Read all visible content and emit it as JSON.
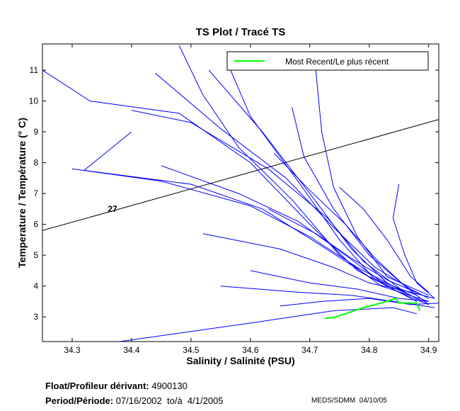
{
  "chart_data": {
    "type": "line",
    "title": "TS Plot / Tracé TS",
    "xlabel": "Salinity / Salinité (PSU)",
    "ylabel": "Temperature / Température (° C)",
    "xlim": [
      34.25,
      34.917
    ],
    "ylim": [
      2.2,
      11.85
    ],
    "xticks": [
      "34.3",
      "34.4",
      "34.5",
      "34.6",
      "34.7",
      "34.8",
      "34.9"
    ],
    "yticks": [
      "3",
      "4",
      "5",
      "6",
      "7",
      "8",
      "9",
      "10",
      "11"
    ],
    "legend": {
      "label": "Most Recent/Le plus récent",
      "placement": "top-right"
    },
    "colors": {
      "profiles": "#0000ff",
      "recent": "#00ff00",
      "density": "#000000"
    },
    "density_contour": {
      "label": "27",
      "points": [
        [
          34.25,
          5.8
        ],
        [
          34.917,
          9.4
        ]
      ],
      "label_at": [
        34.36,
        6.4
      ]
    },
    "profiles": [
      [
        [
          34.25,
          11.0
        ],
        [
          34.33,
          10.0
        ],
        [
          34.48,
          9.6
        ],
        [
          34.6,
          8.0
        ],
        [
          34.7,
          6.0
        ],
        [
          34.78,
          4.5
        ],
        [
          34.85,
          3.8
        ],
        [
          34.9,
          3.4
        ]
      ],
      [
        [
          34.4,
          9.0
        ],
        [
          34.32,
          7.75
        ],
        [
          34.5,
          7.3
        ],
        [
          34.62,
          6.5
        ],
        [
          34.72,
          5.3
        ],
        [
          34.8,
          4.3
        ],
        [
          34.88,
          3.7
        ]
      ],
      [
        [
          34.48,
          11.8
        ],
        [
          34.52,
          10.2
        ],
        [
          34.58,
          8.5
        ],
        [
          34.67,
          6.8
        ],
        [
          34.75,
          5.0
        ],
        [
          34.82,
          4.0
        ],
        [
          34.9,
          3.5
        ]
      ],
      [
        [
          34.56,
          11.3
        ],
        [
          34.6,
          9.5
        ],
        [
          34.68,
          7.4
        ],
        [
          34.75,
          5.5
        ],
        [
          34.81,
          4.2
        ],
        [
          34.87,
          3.7
        ]
      ],
      [
        [
          34.3,
          7.8
        ],
        [
          34.45,
          7.4
        ],
        [
          34.6,
          6.6
        ],
        [
          34.7,
          5.6
        ],
        [
          34.78,
          4.6
        ],
        [
          34.85,
          3.9
        ],
        [
          34.91,
          3.6
        ]
      ],
      [
        [
          34.53,
          11.0
        ],
        [
          34.62,
          9.0
        ],
        [
          34.7,
          7.0
        ],
        [
          34.77,
          5.2
        ],
        [
          34.83,
          4.1
        ],
        [
          34.89,
          3.5
        ]
      ],
      [
        [
          34.4,
          9.7
        ],
        [
          34.5,
          9.3
        ],
        [
          34.63,
          7.8
        ],
        [
          34.73,
          6.2
        ],
        [
          34.79,
          4.8
        ],
        [
          34.86,
          3.8
        ]
      ],
      [
        [
          34.71,
          11.0
        ],
        [
          34.72,
          9.0
        ],
        [
          34.74,
          7.2
        ],
        [
          34.78,
          5.6
        ],
        [
          34.83,
          4.3
        ],
        [
          34.9,
          3.7
        ]
      ],
      [
        [
          34.64,
          8.3
        ],
        [
          34.7,
          7.1
        ],
        [
          34.76,
          6.0
        ],
        [
          34.81,
          4.9
        ],
        [
          34.86,
          4.0
        ],
        [
          34.9,
          3.4
        ]
      ],
      [
        [
          34.75,
          7.2
        ],
        [
          34.79,
          6.5
        ],
        [
          34.83,
          5.5
        ],
        [
          34.87,
          4.3
        ],
        [
          34.9,
          3.8
        ]
      ],
      [
        [
          34.45,
          7.9
        ],
        [
          34.58,
          7.0
        ],
        [
          34.68,
          6.1
        ],
        [
          34.76,
          5.0
        ],
        [
          34.83,
          4.0
        ],
        [
          34.88,
          3.5
        ]
      ],
      [
        [
          34.63,
          6.5
        ],
        [
          34.71,
          5.7
        ],
        [
          34.77,
          4.9
        ],
        [
          34.83,
          4.2
        ],
        [
          34.89,
          3.7
        ]
      ],
      [
        [
          34.52,
          5.7
        ],
        [
          34.65,
          5.2
        ],
        [
          34.74,
          4.6
        ],
        [
          34.8,
          4.1
        ],
        [
          34.87,
          3.8
        ]
      ],
      [
        [
          34.6,
          4.5
        ],
        [
          34.7,
          4.1
        ],
        [
          34.78,
          3.9
        ],
        [
          34.85,
          3.6
        ],
        [
          34.9,
          3.5
        ]
      ],
      [
        [
          34.55,
          4.0
        ],
        [
          34.68,
          3.8
        ],
        [
          34.77,
          3.7
        ],
        [
          34.84,
          3.5
        ],
        [
          34.91,
          3.3
        ]
      ],
      [
        [
          34.65,
          3.35
        ],
        [
          34.72,
          3.5
        ],
        [
          34.8,
          3.6
        ],
        [
          34.87,
          3.4
        ],
        [
          34.92,
          3.45
        ]
      ],
      [
        [
          34.38,
          2.2
        ],
        [
          34.6,
          2.8
        ],
        [
          34.74,
          3.2
        ],
        [
          34.84,
          3.3
        ],
        [
          34.88,
          3.1
        ]
      ],
      [
        [
          34.85,
          7.3
        ],
        [
          34.84,
          6.2
        ],
        [
          34.86,
          5.0
        ],
        [
          34.88,
          4.1
        ],
        [
          34.91,
          3.6
        ]
      ],
      [
        [
          34.67,
          9.8
        ],
        [
          34.69,
          8.2
        ],
        [
          34.74,
          6.5
        ],
        [
          34.8,
          5.0
        ],
        [
          34.86,
          4.0
        ],
        [
          34.9,
          3.6
        ]
      ],
      [
        [
          34.44,
          10.9
        ],
        [
          34.55,
          9.1
        ],
        [
          34.66,
          7.5
        ],
        [
          34.74,
          5.9
        ],
        [
          34.81,
          4.6
        ],
        [
          34.87,
          3.9
        ]
      ]
    ],
    "recent_profile": [
      [
        34.725,
        2.95
      ],
      [
        34.74,
        2.98
      ],
      [
        34.76,
        3.1
      ],
      [
        34.79,
        3.3
      ],
      [
        34.82,
        3.45
      ],
      [
        34.845,
        3.6
      ],
      [
        34.85,
        3.45
      ],
      [
        34.88,
        3.45
      ],
      [
        34.885,
        3.2
      ]
    ]
  },
  "footer": {
    "float_label": "Float/Profileur dérivant:",
    "float_id": "4900130",
    "period_label": "Period/Période:",
    "period_value": "07/16/2002  to/à  4/1/2005",
    "credit": "MEDS/SDMM  04/10/05"
  }
}
